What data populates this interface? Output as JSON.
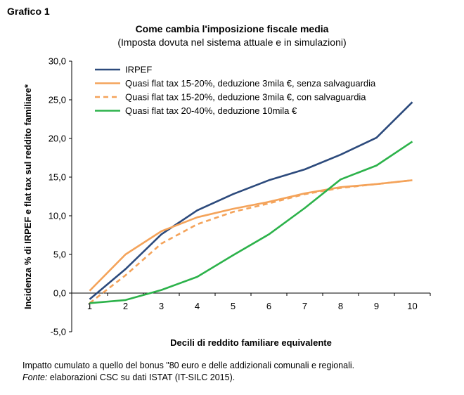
{
  "header": {
    "grafico": "Grafico 1",
    "title": "Come cambia l'imposizione fiscale media",
    "subtitle": "(Imposta dovuta nel sistema attuale e in simulazioni)"
  },
  "chart_data": {
    "type": "line",
    "xlabel": "Decili di reddito familiare equivalente",
    "ylabel": "Incidenza % di IRPEF e flat tax sul reddito familiare*",
    "ylim": [
      -5,
      30
    ],
    "yticks": [
      "-5,0",
      "0,0",
      "5,0",
      "10,0",
      "15,0",
      "20,0",
      "25,0",
      "30,0"
    ],
    "categories": [
      "1",
      "2",
      "3",
      "4",
      "5",
      "6",
      "7",
      "8",
      "9",
      "10"
    ],
    "legend_position": "top-left",
    "grid": false,
    "series": [
      {
        "name": "IRPEF",
        "color": "#2c4a7c",
        "dash": false,
        "values": [
          -0.8,
          3.1,
          7.6,
          10.7,
          12.8,
          14.6,
          16.0,
          17.9,
          20.1,
          24.7
        ]
      },
      {
        "name": "Quasi flat tax 15-20%, deduzione 3mila €, senza salvaguardia",
        "color": "#f4a35a",
        "dash": false,
        "values": [
          0.3,
          5.0,
          8.0,
          9.8,
          10.9,
          11.8,
          12.9,
          13.7,
          14.1,
          14.6
        ]
      },
      {
        "name": "Quasi flat tax 15-20%, deduzione 3mila €, con salvaguardia",
        "color": "#f4a35a",
        "dash": true,
        "values": [
          -1.3,
          2.3,
          6.4,
          8.9,
          10.5,
          11.6,
          12.8,
          13.6,
          14.1,
          14.6
        ]
      },
      {
        "name": "Quasi flat tax 20-40%, deduzione 10mila €",
        "color": "#2cb24a",
        "dash": false,
        "values": [
          -1.3,
          -0.9,
          0.4,
          2.1,
          4.9,
          7.6,
          11.0,
          14.7,
          16.5,
          19.6
        ]
      }
    ]
  },
  "notes": {
    "line1": "Impatto cumulato a quello del bonus \"80 euro e delle addizionali comunali e regionali.",
    "fonte_label": "Fonte:",
    "fonte_text": " elaborazioni CSC su dati ISTAT (IT-SILC 2015)."
  }
}
